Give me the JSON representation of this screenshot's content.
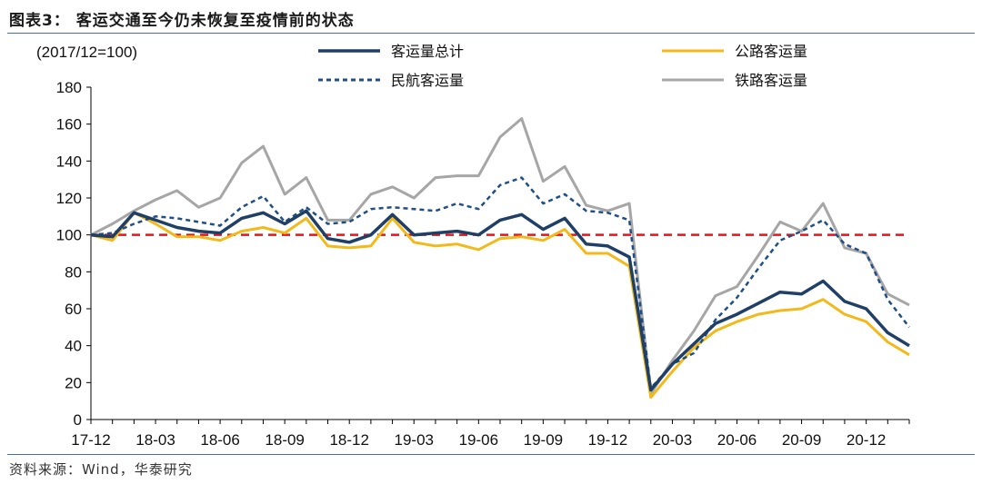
{
  "title": "图表3：  客运交通至今仍未恢复至疫情前的状态",
  "source": "资料来源：Wind，华泰研究",
  "chart_data": {
    "type": "line",
    "unit_label": "(2017/12=100)",
    "ylim": [
      0,
      180
    ],
    "yticks": [
      0,
      20,
      40,
      60,
      80,
      100,
      120,
      140,
      160,
      180
    ],
    "x": [
      "17-12",
      "18-01",
      "18-02",
      "18-03",
      "18-04",
      "18-05",
      "18-06",
      "18-07",
      "18-08",
      "18-09",
      "18-10",
      "18-11",
      "18-12",
      "19-01",
      "19-02",
      "19-03",
      "19-04",
      "19-05",
      "19-06",
      "19-07",
      "19-08",
      "19-09",
      "19-10",
      "19-11",
      "19-12",
      "20-01",
      "20-02",
      "20-03",
      "20-04",
      "20-05",
      "20-06",
      "20-07",
      "20-08",
      "20-09",
      "20-10",
      "20-11",
      "20-12",
      "21-01",
      "21-02"
    ],
    "xtick_labels": [
      "17-12",
      "18-03",
      "18-06",
      "18-09",
      "18-12",
      "19-03",
      "19-06",
      "19-09",
      "19-12",
      "20-03",
      "20-06",
      "20-09",
      "20-12"
    ],
    "reference_line": {
      "value": 100,
      "color": "#e8141c"
    },
    "series": [
      {
        "name": "客运量总计",
        "color": "#1f3f66",
        "style": "solid",
        "values": [
          100,
          99,
          112,
          108,
          104,
          102,
          101,
          109,
          112,
          106,
          113,
          98,
          96,
          100,
          111,
          100,
          101,
          102,
          100,
          108,
          111,
          103,
          109,
          95,
          94,
          88,
          16,
          30,
          41,
          52,
          57,
          63,
          69,
          68,
          75,
          64,
          60,
          47,
          40
        ]
      },
      {
        "name": "民航客运量",
        "color": "#1f4f86",
        "style": "dashed",
        "values": [
          100,
          101,
          106,
          110,
          109,
          107,
          105,
          115,
          121,
          107,
          115,
          106,
          107,
          114,
          115,
          114,
          113,
          117,
          114,
          127,
          131,
          117,
          122,
          113,
          112,
          108,
          17,
          30,
          36,
          54,
          66,
          82,
          97,
          102,
          108,
          95,
          90,
          65,
          50
        ]
      },
      {
        "name": "公路客运量",
        "color": "#f3b91b",
        "style": "solid",
        "values": [
          100,
          97,
          112,
          106,
          99,
          99,
          97,
          102,
          104,
          101,
          109,
          94,
          93,
          94,
          109,
          96,
          94,
          95,
          92,
          98,
          99,
          97,
          103,
          90,
          90,
          83,
          12,
          26,
          39,
          48,
          53,
          57,
          59,
          60,
          65,
          57,
          53,
          42,
          35
        ]
      },
      {
        "name": "铁路客运量",
        "color": "#a6a6a6",
        "style": "solid",
        "values": [
          100,
          106,
          113,
          119,
          124,
          115,
          120,
          139,
          148,
          122,
          131,
          108,
          108,
          122,
          126,
          120,
          131,
          132,
          132,
          153,
          163,
          129,
          137,
          116,
          113,
          117,
          14,
          32,
          48,
          67,
          72,
          89,
          107,
          102,
          117,
          93,
          90,
          68,
          62
        ]
      }
    ],
    "legend_placement": "top"
  }
}
